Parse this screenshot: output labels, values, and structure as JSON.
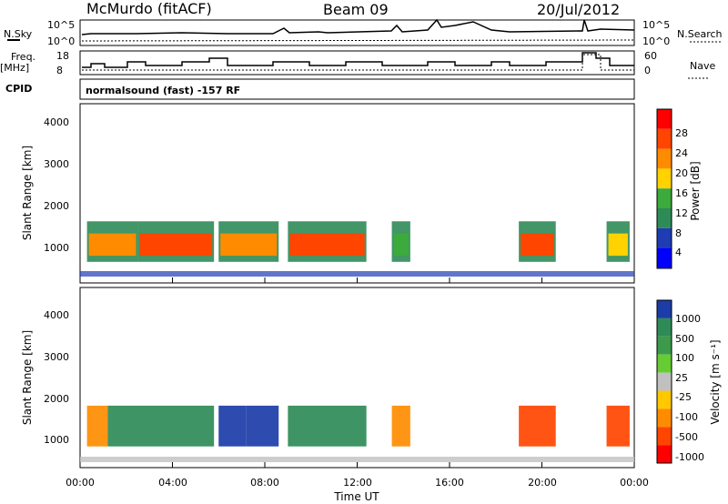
{
  "header": {
    "station": "McMurdo (fitACF)",
    "beam": "Beam 09",
    "date": "20/Jul/2012"
  },
  "strip": {
    "nsky_label": "N.Sky",
    "nsky_ticks": [
      "10^5",
      "10^0"
    ],
    "nsearch_label": "N.Search",
    "nsearch_ticks": [
      "10^5",
      "10^0"
    ],
    "freq_label": "Freq.",
    "freq_unit": "[MHz]",
    "freq_ticks": [
      "18",
      "8"
    ],
    "nave_label": "Nave",
    "nave_ticks": [
      "60",
      "0"
    ],
    "cpid_label": "CPID",
    "cpid_text": "normalsound (fast) -157 RF"
  },
  "panels": {
    "ylabel": "Slant Range [km]",
    "yticks": [
      "4000",
      "3000",
      "2000",
      "1000"
    ],
    "xticks": [
      "00:00",
      "04:00",
      "08:00",
      "12:00",
      "16:00",
      "20:00",
      "00:00"
    ],
    "xlabel": "Time UT"
  },
  "colorbars": {
    "power": {
      "label": "Power [dB]",
      "ticks": [
        "28",
        "24",
        "20",
        "16",
        "12",
        "8",
        "4"
      ],
      "colors": [
        "#ff0000",
        "#ff4500",
        "#ff8c00",
        "#ffd200",
        "#3caa3c",
        "#2e8b57",
        "#1e3cb4",
        "#0000ff"
      ]
    },
    "velocity": {
      "label": "Velocity [m s⁻¹]",
      "ticks": [
        "1000",
        "500",
        "100",
        "25",
        "-25",
        "-100",
        "-500",
        "-1000"
      ],
      "colors": [
        "#1c3ca8",
        "#2e8b57",
        "#3c9a4a",
        "#66cc33",
        "#c0c0c0",
        "#ffc800",
        "#ff8c00",
        "#ff4500",
        "#ff0000"
      ]
    }
  },
  "chart_data": [
    {
      "type": "heatmap",
      "title": "Power",
      "ylabel": "Slant Range [km]",
      "xlabel": "Time UT",
      "x_range_hours": [
        0,
        24
      ],
      "y_range_km": [
        180,
        4600
      ],
      "colorbar": "Power [dB]",
      "colorbar_range": [
        0,
        30
      ],
      "scatter_echo_band_km": [
        700,
        1700
      ],
      "echo_intervals": [
        {
          "start": 0.3,
          "end": 2.5,
          "value_db": 22
        },
        {
          "start": 2.5,
          "end": 5.8,
          "value_db": 26
        },
        {
          "start": 6.0,
          "end": 8.6,
          "value_db": 22
        },
        {
          "start": 9.0,
          "end": 12.4,
          "value_db": 26
        },
        {
          "start": 13.5,
          "end": 14.3,
          "value_db": 12
        },
        {
          "start": 19.0,
          "end": 20.6,
          "value_db": 26
        },
        {
          "start": 22.8,
          "end": 23.8,
          "value_db": 16
        }
      ]
    },
    {
      "type": "heatmap",
      "title": "Velocity",
      "ylabel": "Slant Range [km]",
      "xlabel": "Time UT",
      "x_range_hours": [
        0,
        24
      ],
      "y_range_km": [
        180,
        4600
      ],
      "colorbar": "Velocity [m s-1]",
      "colorbar_ticks": [
        1000,
        500,
        100,
        25,
        -25,
        -100,
        -500,
        -1000
      ],
      "echo_intervals": [
        {
          "start": 0.3,
          "end": 1.2,
          "value_ms": -200
        },
        {
          "start": 1.2,
          "end": 5.8,
          "value_ms": 400
        },
        {
          "start": 6.0,
          "end": 7.2,
          "value_ms": 800
        },
        {
          "start": 7.2,
          "end": 8.6,
          "value_ms": 900
        },
        {
          "start": 9.0,
          "end": 12.4,
          "value_ms": 400
        },
        {
          "start": 13.5,
          "end": 14.3,
          "value_ms": -200
        },
        {
          "start": 19.0,
          "end": 20.6,
          "value_ms": -300
        },
        {
          "start": 22.8,
          "end": 23.8,
          "value_ms": -300
        }
      ]
    }
  ]
}
